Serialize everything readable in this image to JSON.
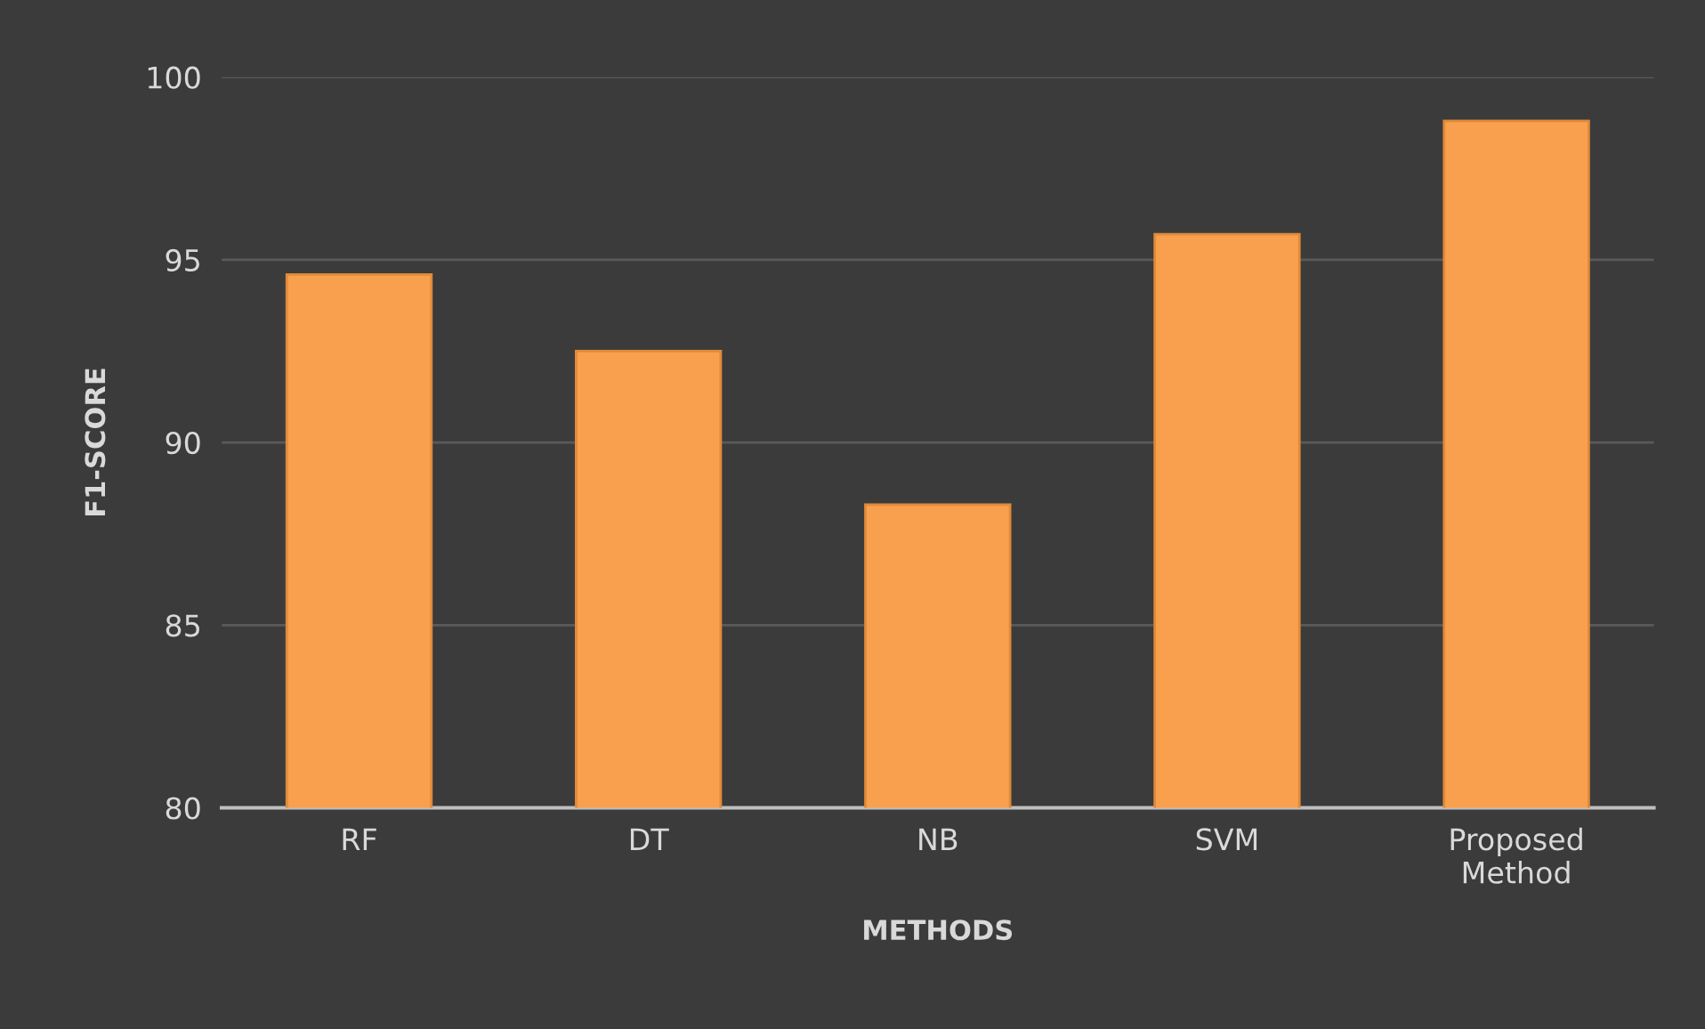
{
  "chart_data": {
    "type": "bar",
    "xlabel": "METHODS",
    "ylabel": "F1-SCORE",
    "categories": [
      "RF",
      "DT",
      "NB",
      "SVM",
      "Proposed\nMethod"
    ],
    "values": [
      94.6,
      92.5,
      88.3,
      95.7,
      98.8
    ],
    "color": "#f9a04e",
    "ylim": [
      80,
      100
    ],
    "yticks": [
      80,
      85,
      90,
      95,
      100
    ],
    "grid": "y"
  }
}
